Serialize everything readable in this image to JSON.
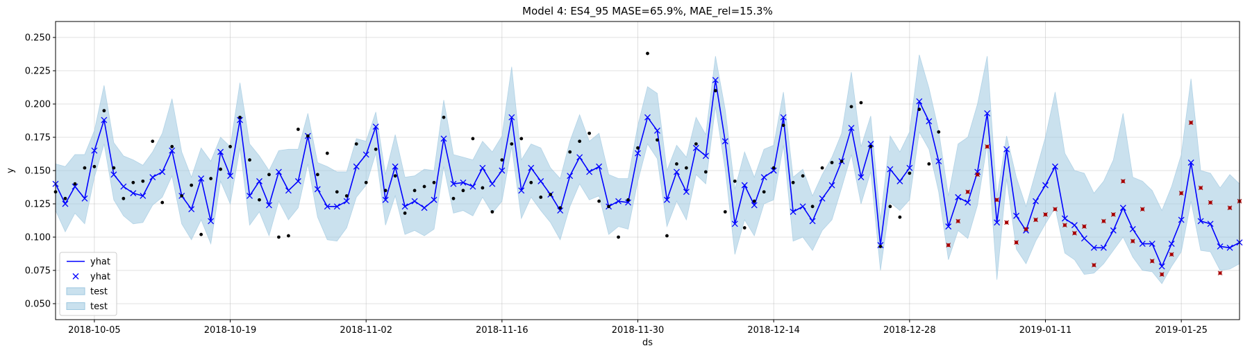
{
  "chart_data": {
    "type": "line",
    "title": "Model 4: ES4_95 MASE=65.9%, MAE_rel=15.3%",
    "xlabel": "ds",
    "ylabel": "y",
    "x_start": "2018-10-01",
    "ylim": [
      0.038,
      0.262
    ],
    "yticks": [
      "0.050",
      "0.075",
      "0.100",
      "0.125",
      "0.150",
      "0.175",
      "0.200",
      "0.225",
      "0.250"
    ],
    "xticks": [
      "2018-10-05",
      "2018-10-19",
      "2018-11-02",
      "2018-11-16",
      "2018-11-30",
      "2018-12-14",
      "2018-12-28",
      "2019-01-11",
      "2019-01-25"
    ],
    "grid": true,
    "legend_position": "lower-left",
    "legend": [
      "yhat",
      "yhat",
      "test",
      "test"
    ],
    "colors": {
      "forecast": "#0000ff",
      "interval": "#9ec8e0",
      "history_points": "#000000",
      "test_points": "#cc0000"
    },
    "yhat": [
      0.14,
      0.125,
      0.138,
      0.129,
      0.165,
      0.188,
      0.147,
      0.138,
      0.133,
      0.131,
      0.145,
      0.149,
      0.165,
      0.131,
      0.121,
      0.144,
      0.112,
      0.164,
      0.146,
      0.188,
      0.131,
      0.142,
      0.124,
      0.149,
      0.135,
      0.142,
      0.176,
      0.136,
      0.123,
      0.123,
      0.127,
      0.153,
      0.162,
      0.183,
      0.128,
      0.153,
      0.123,
      0.127,
      0.122,
      0.128,
      0.174,
      0.14,
      0.141,
      0.138,
      0.152,
      0.14,
      0.15,
      0.19,
      0.135,
      0.152,
      0.142,
      0.132,
      0.12,
      0.146,
      0.16,
      0.149,
      0.153,
      0.123,
      0.127,
      0.126,
      0.163,
      0.19,
      0.18,
      0.128,
      0.149,
      0.134,
      0.167,
      0.161,
      0.218,
      0.172,
      0.11,
      0.139,
      0.124,
      0.145,
      0.15,
      0.19,
      0.119,
      0.123,
      0.112,
      0.129,
      0.139,
      0.157,
      0.182,
      0.145,
      0.17,
      0.094,
      0.151,
      0.142,
      0.152,
      0.202,
      0.187,
      0.157,
      0.108,
      0.13,
      0.126,
      0.149,
      0.193,
      0.111,
      0.166,
      0.116,
      0.105,
      0.127,
      0.139,
      0.153,
      0.114,
      0.109,
      0.099,
      0.092,
      0.092,
      0.105,
      0.122,
      0.106,
      0.095,
      0.095,
      0.078,
      0.095,
      0.113,
      0.156,
      0.112,
      0.11,
      0.093,
      0.092,
      0.096
    ],
    "yhat_lower": [
      0.12,
      0.104,
      0.118,
      0.11,
      0.145,
      0.17,
      0.128,
      0.116,
      0.11,
      0.111,
      0.124,
      0.13,
      0.146,
      0.11,
      0.098,
      0.113,
      0.095,
      0.142,
      0.125,
      0.167,
      0.109,
      0.119,
      0.101,
      0.127,
      0.113,
      0.122,
      0.155,
      0.115,
      0.098,
      0.097,
      0.107,
      0.13,
      0.139,
      0.163,
      0.109,
      0.131,
      0.102,
      0.105,
      0.101,
      0.106,
      0.153,
      0.118,
      0.12,
      0.116,
      0.13,
      0.118,
      0.127,
      0.168,
      0.114,
      0.13,
      0.12,
      0.111,
      0.098,
      0.123,
      0.14,
      0.128,
      0.131,
      0.102,
      0.108,
      0.106,
      0.142,
      0.17,
      0.159,
      0.108,
      0.127,
      0.113,
      0.147,
      0.14,
      0.198,
      0.151,
      0.087,
      0.113,
      0.101,
      0.125,
      0.128,
      0.169,
      0.097,
      0.1,
      0.09,
      0.105,
      0.113,
      0.137,
      0.162,
      0.125,
      0.149,
      0.075,
      0.126,
      0.12,
      0.128,
      0.179,
      0.166,
      0.134,
      0.083,
      0.105,
      0.099,
      0.124,
      0.17,
      0.068,
      0.144,
      0.091,
      0.08,
      0.097,
      0.11,
      0.122,
      0.088,
      0.083,
      0.072,
      0.073,
      0.08,
      0.09,
      0.1,
      0.085,
      0.075,
      0.074,
      0.065,
      0.078,
      0.089,
      0.127,
      0.09,
      0.089,
      0.075,
      0.076,
      0.08
    ],
    "yhat_upper": [
      0.155,
      0.153,
      0.162,
      0.162,
      0.18,
      0.214,
      0.171,
      0.161,
      0.158,
      0.154,
      0.164,
      0.178,
      0.204,
      0.164,
      0.145,
      0.167,
      0.157,
      0.175,
      0.168,
      0.216,
      0.17,
      0.161,
      0.15,
      0.165,
      0.166,
      0.166,
      0.193,
      0.156,
      0.153,
      0.149,
      0.149,
      0.174,
      0.172,
      0.194,
      0.147,
      0.177,
      0.145,
      0.146,
      0.151,
      0.15,
      0.203,
      0.162,
      0.16,
      0.158,
      0.172,
      0.164,
      0.176,
      0.228,
      0.158,
      0.17,
      0.167,
      0.152,
      0.144,
      0.172,
      0.192,
      0.172,
      0.178,
      0.147,
      0.144,
      0.144,
      0.184,
      0.213,
      0.208,
      0.15,
      0.169,
      0.16,
      0.19,
      0.177,
      0.236,
      0.196,
      0.136,
      0.164,
      0.145,
      0.166,
      0.169,
      0.209,
      0.145,
      0.151,
      0.131,
      0.147,
      0.16,
      0.178,
      0.224,
      0.168,
      0.191,
      0.113,
      0.176,
      0.164,
      0.179,
      0.237,
      0.212,
      0.18,
      0.131,
      0.17,
      0.175,
      0.2,
      0.236,
      0.13,
      0.176,
      0.145,
      0.123,
      0.149,
      0.175,
      0.209,
      0.163,
      0.15,
      0.148,
      0.133,
      0.142,
      0.158,
      0.193,
      0.145,
      0.142,
      0.135,
      0.12,
      0.138,
      0.162,
      0.219,
      0.15,
      0.148,
      0.137,
      0.147,
      0.14
    ],
    "history_points": [
      [
        0,
        0.134
      ],
      [
        1,
        0.129
      ],
      [
        2,
        0.14
      ],
      [
        3,
        0.152
      ],
      [
        4,
        0.153
      ],
      [
        5,
        0.195
      ],
      [
        6,
        0.152
      ],
      [
        7,
        0.129
      ],
      [
        8,
        0.141
      ],
      [
        9,
        0.142
      ],
      [
        10,
        0.172
      ],
      [
        11,
        0.126
      ],
      [
        12,
        0.168
      ],
      [
        13,
        0.131
      ],
      [
        14,
        0.139
      ],
      [
        15,
        0.102
      ],
      [
        16,
        0.144
      ],
      [
        17,
        0.151
      ],
      [
        18,
        0.168
      ],
      [
        19,
        0.19
      ],
      [
        20,
        0.158
      ],
      [
        21,
        0.128
      ],
      [
        22,
        0.147
      ],
      [
        23,
        0.1
      ],
      [
        24,
        0.101
      ],
      [
        25,
        0.181
      ],
      [
        26,
        0.176
      ],
      [
        27,
        0.147
      ],
      [
        28,
        0.163
      ],
      [
        29,
        0.134
      ],
      [
        30,
        0.131
      ],
      [
        31,
        0.17
      ],
      [
        32,
        0.141
      ],
      [
        33,
        0.166
      ],
      [
        34,
        0.135
      ],
      [
        35,
        0.146
      ],
      [
        36,
        0.118
      ],
      [
        37,
        0.135
      ],
      [
        38,
        0.138
      ],
      [
        39,
        0.141
      ],
      [
        40,
        0.19
      ],
      [
        41,
        0.129
      ],
      [
        42,
        0.135
      ],
      [
        43,
        0.174
      ],
      [
        44,
        0.137
      ],
      [
        45,
        0.119
      ],
      [
        46,
        0.158
      ],
      [
        47,
        0.17
      ],
      [
        48,
        0.174
      ],
      [
        49,
        0.141
      ],
      [
        50,
        0.13
      ],
      [
        51,
        0.132
      ],
      [
        52,
        0.122
      ],
      [
        53,
        0.164
      ],
      [
        54,
        0.172
      ],
      [
        55,
        0.178
      ],
      [
        56,
        0.127
      ],
      [
        57,
        0.123
      ],
      [
        58,
        0.1
      ],
      [
        59,
        0.128
      ],
      [
        60,
        0.167
      ],
      [
        61,
        0.238
      ],
      [
        62,
        0.173
      ],
      [
        63,
        0.101
      ],
      [
        64,
        0.155
      ],
      [
        65,
        0.152
      ],
      [
        66,
        0.17
      ],
      [
        67,
        0.149
      ],
      [
        68,
        0.21
      ],
      [
        69,
        0.119
      ],
      [
        70,
        0.142
      ],
      [
        71,
        0.107
      ],
      [
        72,
        0.127
      ],
      [
        73,
        0.134
      ],
      [
        74,
        0.152
      ],
      [
        75,
        0.184
      ],
      [
        76,
        0.141
      ],
      [
        77,
        0.146
      ],
      [
        78,
        0.123
      ],
      [
        79,
        0.152
      ],
      [
        80,
        0.156
      ],
      [
        81,
        0.157
      ],
      [
        82,
        0.198
      ],
      [
        83,
        0.201
      ],
      [
        84,
        0.168
      ],
      [
        85,
        0.093
      ],
      [
        86,
        0.123
      ],
      [
        87,
        0.115
      ],
      [
        88,
        0.148
      ],
      [
        89,
        0.196
      ],
      [
        90,
        0.155
      ],
      [
        91,
        0.179
      ]
    ],
    "test_points": [
      [
        92,
        0.094
      ],
      [
        93,
        0.112
      ],
      [
        94,
        0.134
      ],
      [
        95,
        0.147
      ],
      [
        96,
        0.168
      ],
      [
        97,
        0.128
      ],
      [
        98,
        0.111
      ],
      [
        99,
        0.096
      ],
      [
        100,
        0.106
      ],
      [
        101,
        0.113
      ],
      [
        102,
        0.117
      ],
      [
        103,
        0.121
      ],
      [
        104,
        0.109
      ],
      [
        105,
        0.103
      ],
      [
        106,
        0.108
      ],
      [
        107,
        0.079
      ],
      [
        108,
        0.112
      ],
      [
        109,
        0.117
      ],
      [
        110,
        0.142
      ],
      [
        111,
        0.097
      ],
      [
        112,
        0.121
      ],
      [
        113,
        0.082
      ],
      [
        114,
        0.072
      ],
      [
        115,
        0.087
      ],
      [
        116,
        0.133
      ],
      [
        117,
        0.186
      ],
      [
        118,
        0.137
      ],
      [
        119,
        0.126
      ],
      [
        120,
        0.073
      ],
      [
        121,
        0.122
      ],
      [
        122,
        0.127
      ]
    ]
  }
}
